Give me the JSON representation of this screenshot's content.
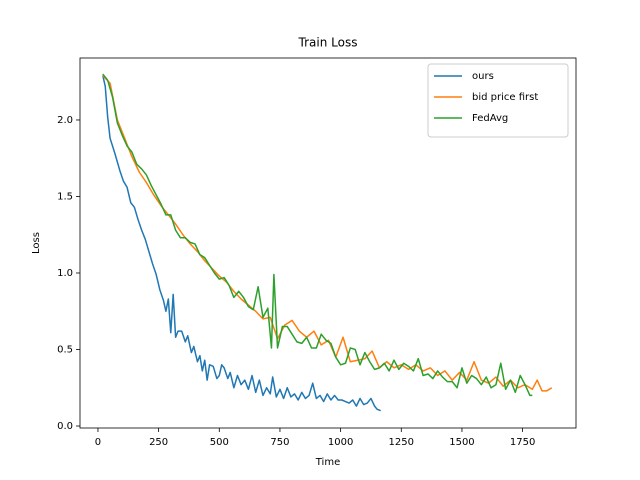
{
  "chart_data": {
    "type": "line",
    "title": "Train Loss",
    "x_label": "Time",
    "y_label": "Loss",
    "xlim": [
      -74,
      1970
    ],
    "ylim": [
      -0.013,
      2.405
    ],
    "xticks": [
      0,
      250,
      500,
      750,
      1000,
      1250,
      1500,
      1750
    ],
    "yticks": [
      {
        "value": 0,
        "label": "0.0"
      },
      0.5,
      {
        "value": 1,
        "label": "1.0"
      },
      1.5,
      {
        "value": 2,
        "label": "2.0"
      }
    ],
    "legend": "upper right",
    "grid": false,
    "series": [
      {
        "name": "ours",
        "color": "#1f77b4",
        "x": [
          20,
          30,
          40,
          50,
          70,
          90,
          105,
          120,
          135,
          150,
          165,
          180,
          195,
          210,
          225,
          240,
          255,
          270,
          280,
          290,
          300,
          310,
          320,
          330,
          345,
          360,
          370,
          385,
          395,
          410,
          420,
          430,
          440,
          450,
          460,
          475,
          490,
          500,
          510,
          520,
          535,
          545,
          560,
          575,
          590,
          605,
          620,
          635,
          650,
          665,
          680,
          695,
          710,
          720,
          735,
          750,
          765,
          780,
          795,
          810,
          825,
          840,
          855,
          870,
          885,
          900,
          915,
          930,
          945,
          960,
          975,
          990,
          1005,
          1020,
          1035,
          1050,
          1065,
          1080,
          1095,
          1110,
          1125,
          1140,
          1150,
          1165
        ],
        "values": [
          2.29,
          2.22,
          2.02,
          1.88,
          1.78,
          1.67,
          1.6,
          1.56,
          1.46,
          1.43,
          1.35,
          1.28,
          1.22,
          1.14,
          1.06,
          0.99,
          0.89,
          0.82,
          0.75,
          0.83,
          0.61,
          0.86,
          0.58,
          0.62,
          0.62,
          0.55,
          0.59,
          0.48,
          0.52,
          0.42,
          0.46,
          0.36,
          0.43,
          0.3,
          0.4,
          0.39,
          0.31,
          0.33,
          0.4,
          0.38,
          0.31,
          0.35,
          0.25,
          0.33,
          0.27,
          0.3,
          0.24,
          0.33,
          0.22,
          0.3,
          0.2,
          0.25,
          0.21,
          0.32,
          0.19,
          0.24,
          0.18,
          0.25,
          0.19,
          0.21,
          0.17,
          0.22,
          0.18,
          0.2,
          0.28,
          0.18,
          0.2,
          0.16,
          0.21,
          0.17,
          0.2,
          0.17,
          0.17,
          0.16,
          0.15,
          0.17,
          0.13,
          0.18,
          0.14,
          0.15,
          0.18,
          0.13,
          0.11,
          0.1
        ]
      },
      {
        "name": "bid price first",
        "color": "#ff7f0e",
        "x": [
          20,
          50,
          80,
          110,
          140,
          170,
          200,
          230,
          260,
          290,
          320,
          350,
          380,
          410,
          440,
          470,
          500,
          530,
          560,
          590,
          620,
          650,
          680,
          710,
          740,
          770,
          800,
          830,
          860,
          890,
          920,
          950,
          980,
          1010,
          1040,
          1070,
          1100,
          1130,
          1160,
          1190,
          1220,
          1250,
          1280,
          1310,
          1340,
          1370,
          1400,
          1430,
          1460,
          1490,
          1520,
          1550,
          1580,
          1610,
          1640,
          1670,
          1700,
          1730,
          1760,
          1790,
          1810,
          1830,
          1850,
          1870
        ],
        "values": [
          2.29,
          2.24,
          2.0,
          1.88,
          1.76,
          1.66,
          1.59,
          1.51,
          1.44,
          1.38,
          1.32,
          1.25,
          1.19,
          1.14,
          1.08,
          1.03,
          0.98,
          0.94,
          0.88,
          0.83,
          0.79,
          0.75,
          0.7,
          0.71,
          0.57,
          0.66,
          0.69,
          0.62,
          0.58,
          0.62,
          0.53,
          0.56,
          0.45,
          0.58,
          0.42,
          0.43,
          0.44,
          0.49,
          0.38,
          0.42,
          0.38,
          0.4,
          0.37,
          0.4,
          0.36,
          0.38,
          0.33,
          0.36,
          0.3,
          0.35,
          0.3,
          0.42,
          0.3,
          0.28,
          0.32,
          0.26,
          0.3,
          0.25,
          0.27,
          0.24,
          0.3,
          0.23,
          0.23,
          0.25
        ]
      },
      {
        "name": "FedAvg",
        "color": "#2ca02c",
        "x": [
          20,
          40,
          60,
          80,
          100,
          120,
          140,
          160,
          180,
          200,
          220,
          240,
          260,
          280,
          300,
          320,
          340,
          360,
          380,
          400,
          420,
          440,
          460,
          480,
          500,
          520,
          540,
          560,
          580,
          600,
          620,
          640,
          660,
          680,
          700,
          715,
          725,
          740,
          760,
          780,
          800,
          820,
          840,
          860,
          880,
          900,
          920,
          940,
          960,
          980,
          1000,
          1020,
          1040,
          1060,
          1080,
          1100,
          1120,
          1140,
          1160,
          1180,
          1200,
          1220,
          1240,
          1260,
          1280,
          1300,
          1320,
          1340,
          1360,
          1380,
          1400,
          1420,
          1440,
          1460,
          1480,
          1500,
          1520,
          1540,
          1560,
          1580,
          1600,
          1620,
          1640,
          1660,
          1680,
          1700,
          1720,
          1740,
          1760,
          1780,
          1790
        ],
        "values": [
          2.3,
          2.26,
          2.15,
          1.98,
          1.9,
          1.83,
          1.79,
          1.71,
          1.68,
          1.64,
          1.57,
          1.51,
          1.45,
          1.38,
          1.38,
          1.28,
          1.23,
          1.23,
          1.2,
          1.19,
          1.12,
          1.1,
          1.05,
          1.0,
          0.96,
          0.97,
          0.92,
          0.84,
          0.88,
          0.84,
          0.78,
          0.76,
          0.91,
          0.71,
          0.77,
          0.51,
          0.99,
          0.51,
          0.65,
          0.65,
          0.6,
          0.55,
          0.54,
          0.58,
          0.51,
          0.51,
          0.6,
          0.56,
          0.54,
          0.45,
          0.4,
          0.41,
          0.51,
          0.5,
          0.4,
          0.48,
          0.42,
          0.37,
          0.38,
          0.41,
          0.36,
          0.43,
          0.37,
          0.41,
          0.39,
          0.36,
          0.44,
          0.33,
          0.34,
          0.31,
          0.36,
          0.32,
          0.29,
          0.29,
          0.25,
          0.38,
          0.28,
          0.33,
          0.31,
          0.27,
          0.32,
          0.25,
          0.27,
          0.41,
          0.24,
          0.3,
          0.22,
          0.33,
          0.27,
          0.2,
          0.2
        ]
      }
    ]
  }
}
